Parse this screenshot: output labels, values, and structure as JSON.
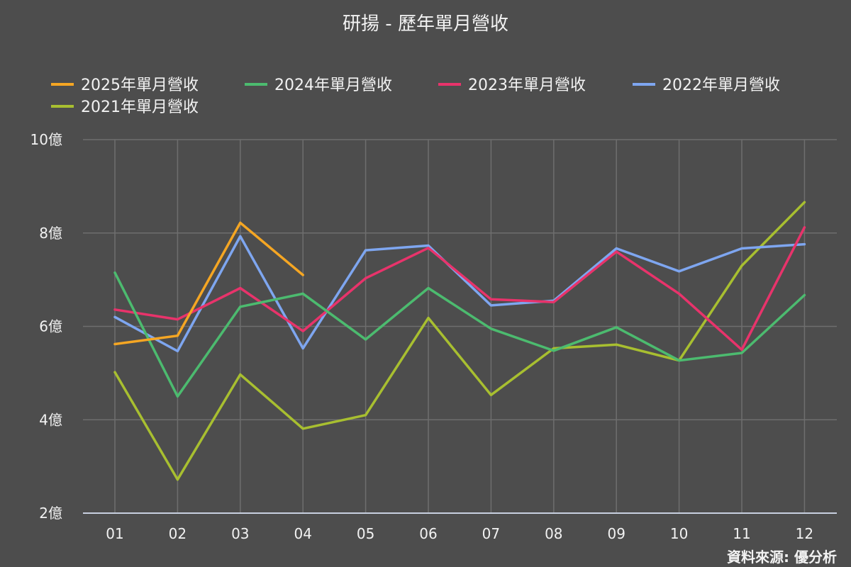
{
  "chart_data": {
    "type": "line",
    "title": "研揚 - 歷年單月營收",
    "source": "資料來源: 優分析",
    "categories": [
      "01",
      "02",
      "03",
      "04",
      "05",
      "06",
      "07",
      "08",
      "09",
      "10",
      "11",
      "12"
    ],
    "y_ticks": [
      "2億",
      "4億",
      "6億",
      "8億",
      "10億"
    ],
    "ylim": [
      2,
      10
    ],
    "ylabel": "",
    "xlabel": "",
    "grid": true,
    "legend_position": "top",
    "series": [
      {
        "name": "2025年單月營收",
        "color": "#f5a623",
        "values": [
          5.62,
          5.8,
          8.22,
          7.1,
          null,
          null,
          null,
          null,
          null,
          null,
          null,
          null
        ]
      },
      {
        "name": "2024年單月營收",
        "color": "#4cbb6f",
        "values": [
          7.15,
          4.5,
          6.42,
          6.7,
          5.72,
          6.82,
          5.95,
          5.48,
          5.98,
          5.27,
          5.43,
          6.67
        ]
      },
      {
        "name": "2023年單月營收",
        "color": "#e8336b",
        "values": [
          6.36,
          6.15,
          6.82,
          5.9,
          7.03,
          7.68,
          6.58,
          6.52,
          7.6,
          6.7,
          5.5,
          8.12
        ]
      },
      {
        "name": "2022年單月營收",
        "color": "#7ea6f0",
        "values": [
          6.2,
          5.47,
          7.93,
          5.53,
          7.63,
          7.73,
          6.45,
          6.55,
          7.67,
          7.18,
          7.67,
          7.76
        ]
      },
      {
        "name": "2021年單月營收",
        "color": "#a8bf30",
        "values": [
          5.02,
          2.72,
          4.97,
          3.81,
          4.1,
          6.18,
          4.53,
          5.53,
          5.61,
          5.27,
          7.3,
          8.66
        ]
      }
    ]
  }
}
